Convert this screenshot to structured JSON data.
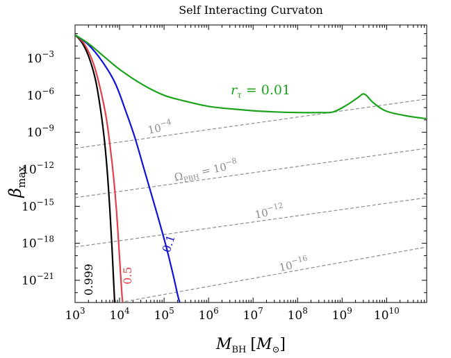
{
  "chart_data": {
    "type": "line",
    "title": "Self Interacting Curvaton",
    "xlabel": "M_BH [M_⊙]",
    "ylabel": "β_max",
    "xscale": "log",
    "yscale": "log",
    "xlim_log10": [
      3,
      10.9
    ],
    "ylim_log10": [
      -22.8,
      -0.3
    ],
    "x_ticks": [
      {
        "exp": 3,
        "base": "10",
        "sup": "3"
      },
      {
        "exp": 4,
        "base": "10",
        "sup": "4"
      },
      {
        "exp": 5,
        "base": "10",
        "sup": "5"
      },
      {
        "exp": 6,
        "base": "10",
        "sup": "6"
      },
      {
        "exp": 7,
        "base": "10",
        "sup": "7"
      },
      {
        "exp": 8,
        "base": "10",
        "sup": "8"
      },
      {
        "exp": 9,
        "base": "10",
        "sup": "9"
      },
      {
        "exp": 10,
        "base": "10",
        "sup": "10"
      }
    ],
    "y_ticks": [
      {
        "exp": -3,
        "base": "10",
        "sup": "−3"
      },
      {
        "exp": -6,
        "base": "10",
        "sup": "−6"
      },
      {
        "exp": -9,
        "base": "10",
        "sup": "−9"
      },
      {
        "exp": -12,
        "base": "10",
        "sup": "−12"
      },
      {
        "exp": -15,
        "base": "10",
        "sup": "−15"
      },
      {
        "exp": -18,
        "base": "10",
        "sup": "−18"
      },
      {
        "exp": -21,
        "base": "10",
        "sup": "−21"
      }
    ],
    "series": [
      {
        "name": "r_τ = 0.999",
        "label": "0.999",
        "color": "#000000",
        "points_log10": [
          [
            3.0,
            -1.1
          ],
          [
            3.15,
            -1.7
          ],
          [
            3.3,
            -2.8
          ],
          [
            3.45,
            -4.6
          ],
          [
            3.55,
            -6.6
          ],
          [
            3.65,
            -9.3
          ],
          [
            3.72,
            -12.0
          ],
          [
            3.78,
            -15.2
          ],
          [
            3.83,
            -18.4
          ],
          [
            3.87,
            -21.3
          ],
          [
            3.89,
            -22.8
          ]
        ]
      },
      {
        "name": "r_τ = 0.5",
        "label": "0.5",
        "color": "#e0404a",
        "points_log10": [
          [
            3.0,
            -1.1
          ],
          [
            3.2,
            -1.8
          ],
          [
            3.4,
            -3.3
          ],
          [
            3.55,
            -5.2
          ],
          [
            3.7,
            -7.8
          ],
          [
            3.8,
            -10.5
          ],
          [
            3.88,
            -13.2
          ],
          [
            3.95,
            -16.3
          ],
          [
            4.0,
            -19.2
          ],
          [
            4.05,
            -22.0
          ],
          [
            4.07,
            -22.8
          ]
        ]
      },
      {
        "name": "r_τ = 0.1",
        "label": "0.1",
        "color": "#1010d8",
        "points_log10": [
          [
            3.0,
            -1.1
          ],
          [
            3.3,
            -1.9
          ],
          [
            3.6,
            -3.2
          ],
          [
            3.9,
            -5.0
          ],
          [
            4.15,
            -7.4
          ],
          [
            4.35,
            -9.5
          ],
          [
            4.6,
            -12.6
          ],
          [
            4.85,
            -15.7
          ],
          [
            5.05,
            -18.3
          ],
          [
            5.2,
            -20.5
          ],
          [
            5.3,
            -22.1
          ],
          [
            5.35,
            -22.8
          ]
        ]
      },
      {
        "name": "r_τ = 0.01",
        "label": "r_τ = 0.01",
        "color": "#1aa31a",
        "points_log10": [
          [
            3.0,
            -1.1
          ],
          [
            3.3,
            -1.8
          ],
          [
            3.6,
            -2.7
          ],
          [
            4.0,
            -3.9
          ],
          [
            4.5,
            -5.1
          ],
          [
            5.0,
            -6.0
          ],
          [
            5.5,
            -6.5
          ],
          [
            6.0,
            -6.9
          ],
          [
            6.5,
            -7.1
          ],
          [
            7.0,
            -7.25
          ],
          [
            7.5,
            -7.35
          ],
          [
            8.0,
            -7.4
          ],
          [
            8.5,
            -7.4
          ],
          [
            8.8,
            -7.35
          ],
          [
            9.1,
            -6.8
          ],
          [
            9.35,
            -6.2
          ],
          [
            9.5,
            -5.9
          ],
          [
            9.7,
            -6.6
          ],
          [
            10.0,
            -7.3
          ],
          [
            10.5,
            -7.7
          ],
          [
            10.9,
            -7.9
          ]
        ]
      }
    ],
    "reference_lines": [
      {
        "label_base": "10",
        "label_sup": "−4",
        "label_prefix": "",
        "color": "#8c8c8c",
        "points_log10": [
          [
            3.0,
            -10.3
          ],
          [
            10.9,
            -6.3
          ]
        ]
      },
      {
        "label_base": "10",
        "label_sup": "−8",
        "label_prefix": "Ω_PBH = ",
        "color": "#8c8c8c",
        "points_log10": [
          [
            3.0,
            -14.3
          ],
          [
            10.9,
            -10.3
          ]
        ]
      },
      {
        "label_base": "10",
        "label_sup": "−12",
        "label_prefix": "",
        "color": "#8c8c8c",
        "points_log10": [
          [
            3.0,
            -18.3
          ],
          [
            10.9,
            -14.3
          ]
        ]
      },
      {
        "label_base": "10",
        "label_sup": "−16",
        "label_prefix": "",
        "color": "#8c8c8c",
        "points_log10": [
          [
            4.0,
            -22.8
          ],
          [
            10.9,
            -18.3
          ]
        ]
      }
    ]
  },
  "labels": {
    "title": "Self Interacting Curvaton",
    "x_main": "M",
    "x_sub": "BH",
    "x_unit_open": "[",
    "x_unit": "M",
    "x_unit_sub": "⊙",
    "x_unit_close": "]",
    "y_main": "β",
    "y_sub": "max",
    "r_main": "r",
    "r_sub": "τ",
    "r_value": " = 0.01",
    "omega_main": "Ω",
    "omega_sub": "PBH",
    "omega_eq": " = ",
    "lbl_0999": "0.999",
    "lbl_05": "0.5",
    "lbl_01": "0.1"
  }
}
